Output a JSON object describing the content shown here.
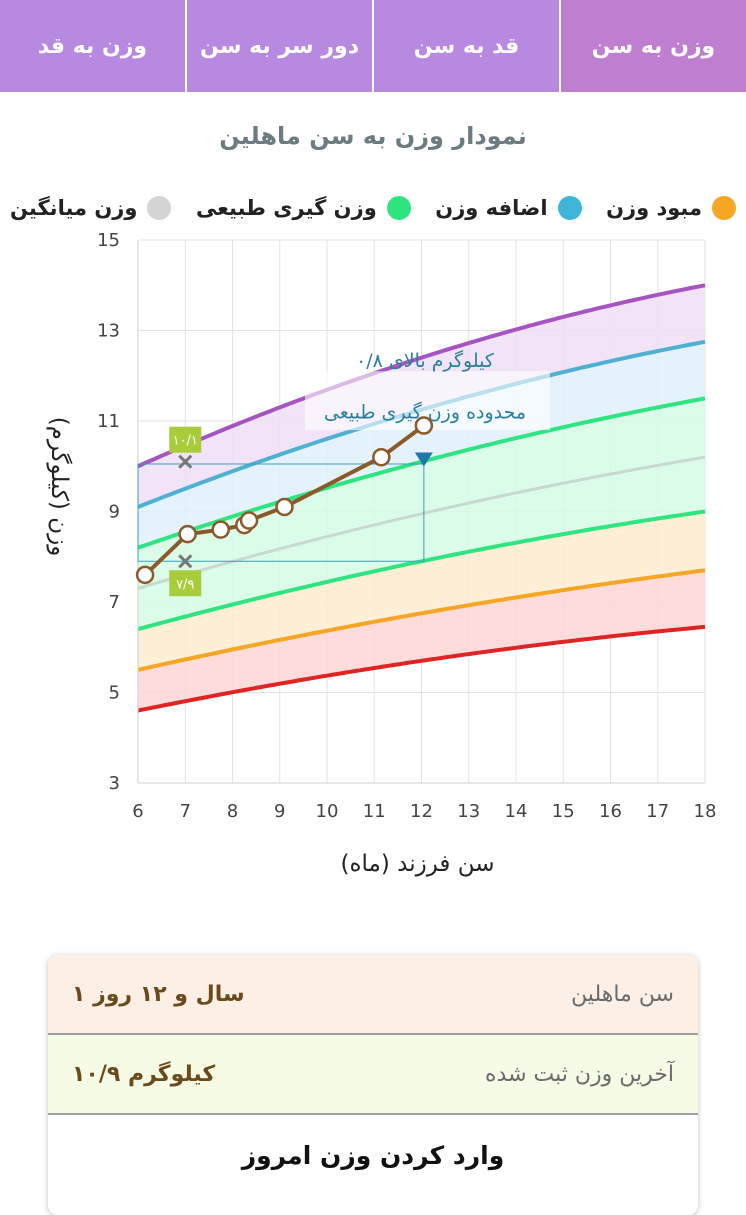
{
  "tabs": [
    {
      "label": "وزن به سن",
      "active": true
    },
    {
      "label": "قد به سن",
      "active": false
    },
    {
      "label": "دور سر به سن",
      "active": false
    },
    {
      "label": "وزن به قد",
      "active": false
    }
  ],
  "chart_title": "نمودار وزن به سن ماهلین",
  "legend": [
    {
      "label": "مبود وزن",
      "color": "#f5a623"
    },
    {
      "label": "اضافه وزن",
      "color": "#3fb6d8"
    },
    {
      "label": "وزن گیری طبیعی",
      "color": "#2ee57f"
    },
    {
      "label": "وزن میانگین",
      "color": "#d4d4d4"
    }
  ],
  "chart_data": {
    "type": "line",
    "xlabel": "سن فرزند (ماه)",
    "ylabel": "وزن (کیلوگرم)",
    "xlim": [
      6,
      18
    ],
    "ylim": [
      3,
      15
    ],
    "x_ticks": [
      6,
      7,
      8,
      9,
      10,
      11,
      12,
      13,
      14,
      15,
      16,
      17,
      18
    ],
    "y_ticks": [
      3,
      5,
      7,
      9,
      11,
      13,
      15
    ],
    "grid": true,
    "percentile_curves": [
      {
        "color": "#e02424",
        "points": [
          [
            6,
            4.6
          ],
          [
            12,
            5.7
          ],
          [
            18,
            6.45
          ]
        ]
      },
      {
        "color": "#f5a623",
        "points": [
          [
            6,
            5.5
          ],
          [
            12,
            6.75
          ],
          [
            18,
            7.7
          ]
        ]
      },
      {
        "color": "#2ee57f",
        "points": [
          [
            6,
            6.4
          ],
          [
            12,
            7.9
          ],
          [
            18,
            9.0
          ]
        ]
      },
      {
        "color": "#c9d8d0",
        "points": [
          [
            6,
            7.3
          ],
          [
            12,
            8.95
          ],
          [
            18,
            10.2
          ]
        ]
      },
      {
        "color": "#2ee57f",
        "points": [
          [
            6,
            8.2
          ],
          [
            12,
            10.1
          ],
          [
            18,
            11.5
          ]
        ]
      },
      {
        "color": "#4fb0d3",
        "points": [
          [
            6,
            9.1
          ],
          [
            12,
            11.25
          ],
          [
            18,
            12.75
          ]
        ]
      },
      {
        "color": "#a655c0",
        "points": [
          [
            6,
            10.0
          ],
          [
            12,
            12.4
          ],
          [
            18,
            14.0
          ]
        ]
      }
    ],
    "band_fills": [
      "#ffd6d6",
      "#ffeccf",
      "#d5fbe5",
      "#d5fbe5",
      "#dff1fa",
      "#efdff5"
    ],
    "series": [
      {
        "values": [
          [
            6.15,
            7.6
          ],
          [
            7.05,
            8.5
          ],
          [
            7.75,
            8.6
          ],
          [
            8.25,
            8.7
          ],
          [
            8.35,
            8.8
          ],
          [
            9.1,
            9.1
          ],
          [
            11.15,
            10.2
          ],
          [
            12.05,
            10.9
          ]
        ]
      }
    ],
    "range_markers": {
      "x": 7,
      "upper": 10.1,
      "upper_label": "۱۰/۱",
      "lower": 7.9,
      "lower_label": "۷/۹"
    },
    "target_marker": {
      "x": 12.05,
      "y": 10.15
    },
    "annotation": {
      "line1": "۰/۸ کیلوگرم بالای",
      "line2": "محدوده وزن گیری طبیعی"
    }
  },
  "card": {
    "age_label": "سن ماهلین",
    "age_value": "۱ سال و ۱۲ روز",
    "weight_label": "آخرین وزن ثبت شده",
    "weight_value": "۱۰/۹ کیلوگرم",
    "action_label": "وارد کردن وزن امروز"
  }
}
